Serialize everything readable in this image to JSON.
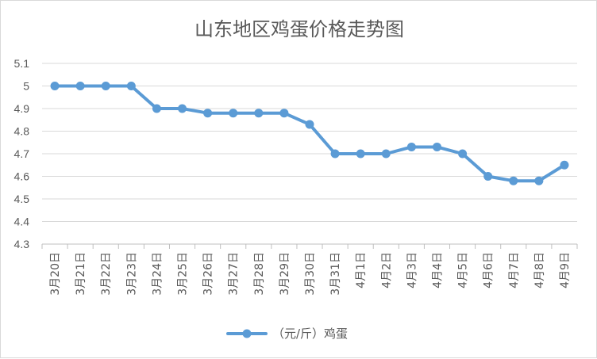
{
  "chart_data": {
    "type": "line",
    "title": "山东地区鸡蛋价格走势图",
    "categories": [
      "3月20日",
      "3月21日",
      "3月22日",
      "3月23日",
      "3月24日",
      "3月25日",
      "3月26日",
      "3月27日",
      "3月28日",
      "3月29日",
      "3月30日",
      "3月31日",
      "4月1日",
      "4月2日",
      "4月3日",
      "4月4日",
      "4月5日",
      "4月6日",
      "4月7日",
      "4月8日",
      "4月9日"
    ],
    "series": [
      {
        "name": "（元/斤）鸡蛋",
        "values": [
          5.0,
          5.0,
          5.0,
          5.0,
          4.9,
          4.9,
          4.88,
          4.88,
          4.88,
          4.88,
          4.83,
          4.7,
          4.7,
          4.7,
          4.73,
          4.73,
          4.7,
          4.6,
          4.58,
          4.58,
          4.65
        ],
        "color": "#5b9bd5"
      }
    ],
    "ylim": [
      4.3,
      5.1
    ],
    "yticks": [
      "4.3",
      "4.4",
      "4.5",
      "4.6",
      "4.7",
      "4.8",
      "4.9",
      "5",
      "5.1"
    ],
    "xlabel": "",
    "ylabel": "",
    "grid": true,
    "legend_position": "bottom"
  }
}
